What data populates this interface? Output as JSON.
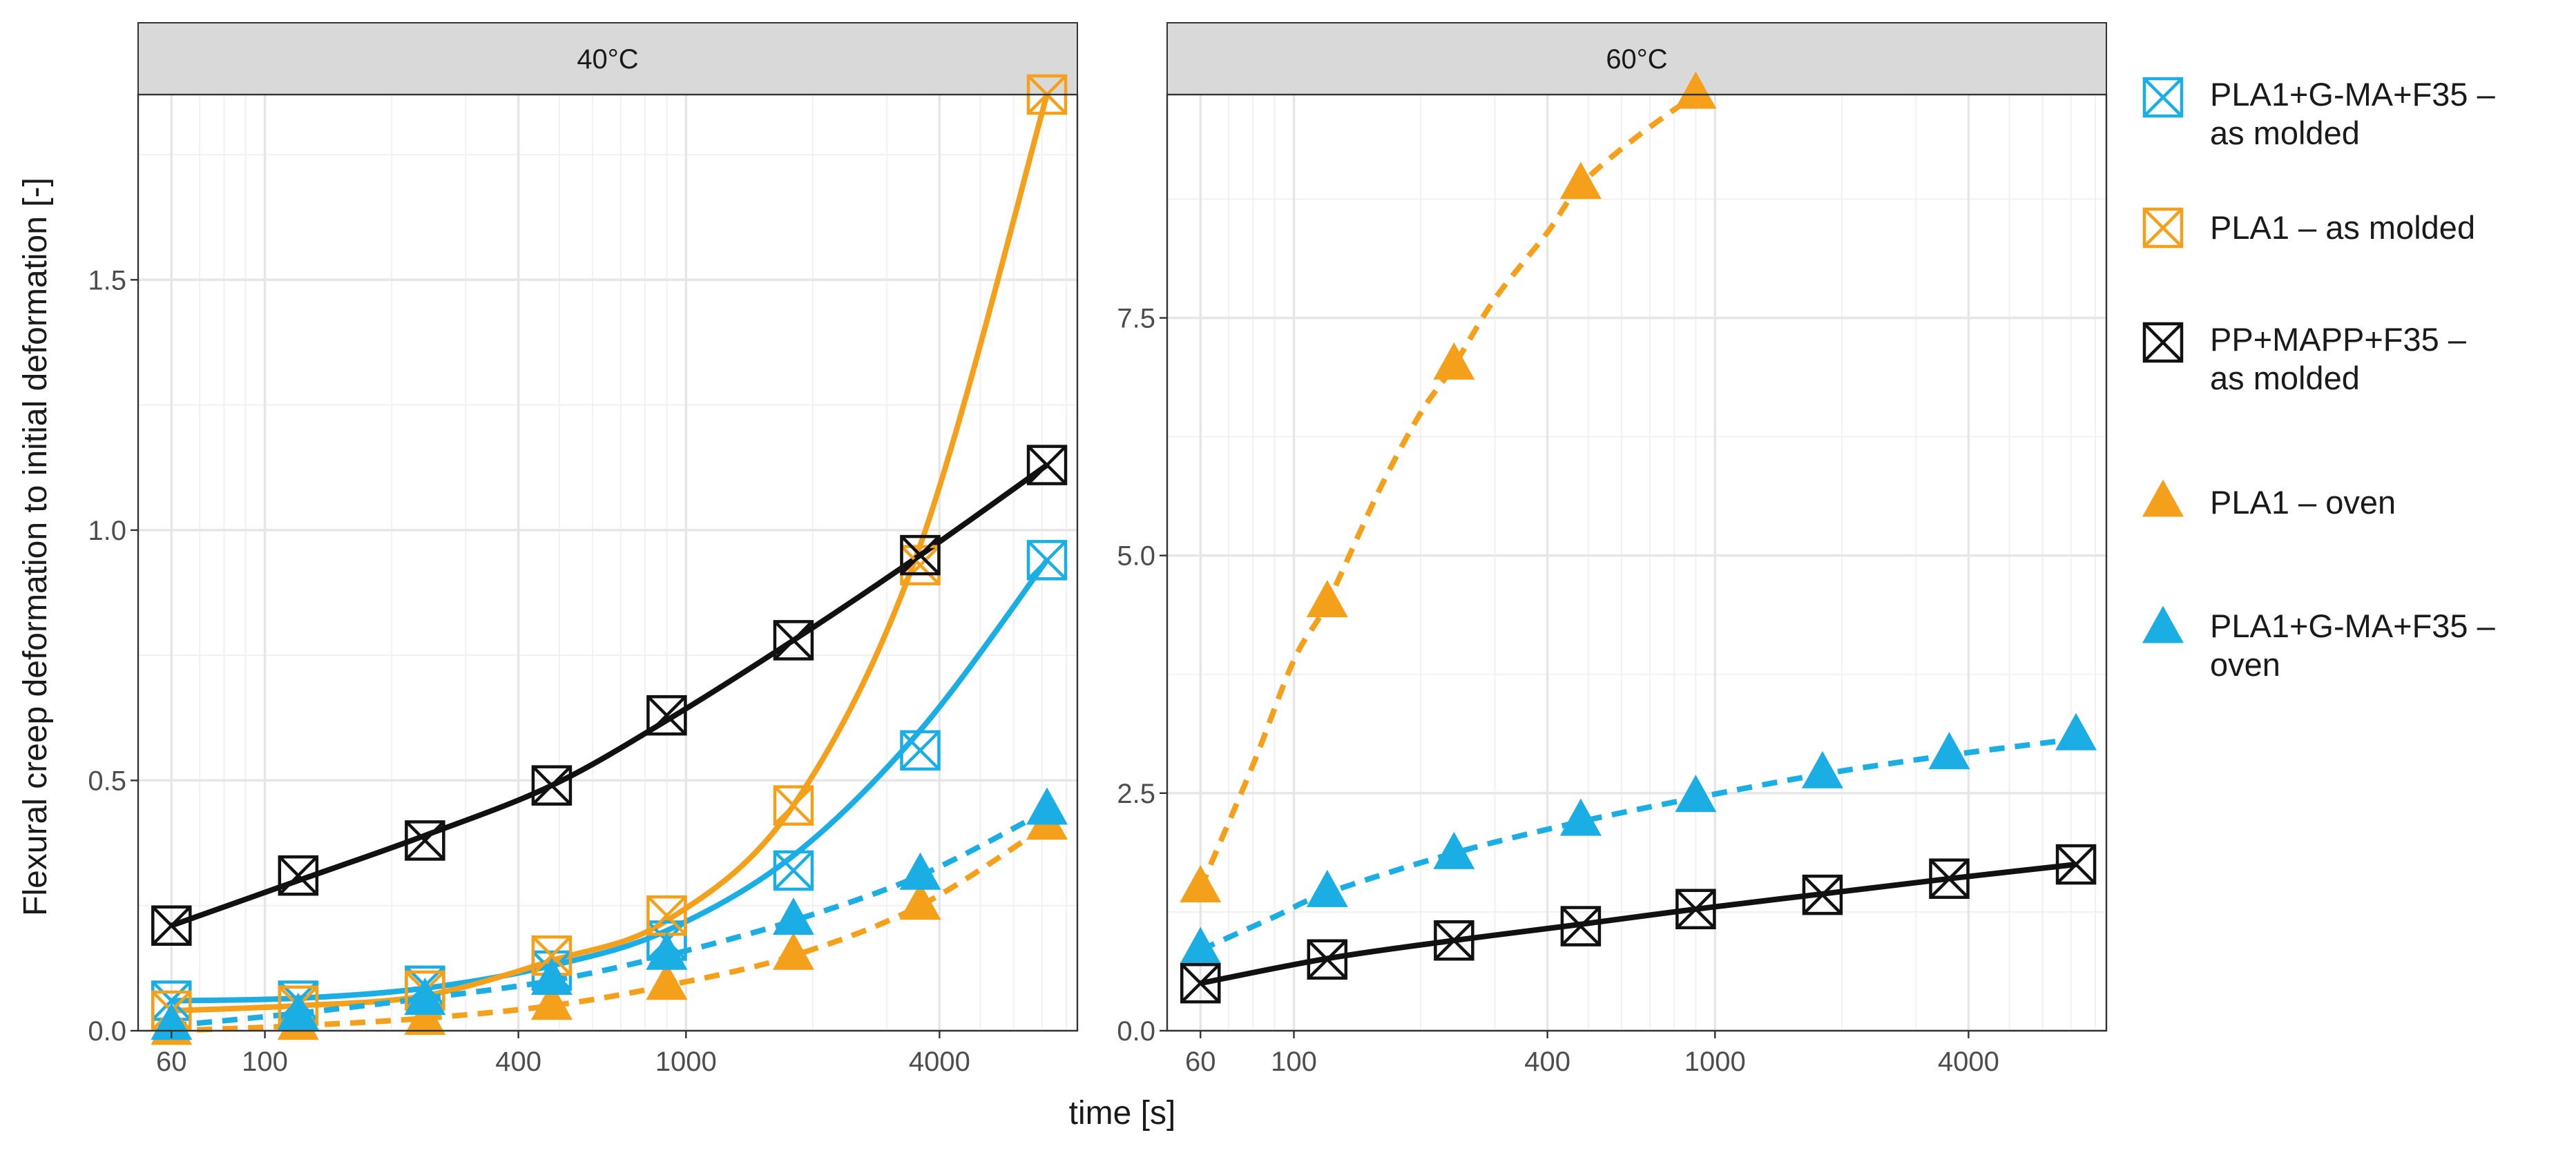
{
  "chart_data": {
    "type": "line",
    "xlabel": "time [s]",
    "ylabel": "Flexural creep deformation to initial deformation [-]",
    "x_scale": "log",
    "x_ticks": [
      60,
      100,
      400,
      1000,
      4000
    ],
    "x_tick_labels": [
      "60",
      "100",
      "400",
      "1000",
      "4000"
    ],
    "x_minor_ticks": [
      70,
      80,
      90,
      200,
      300,
      500,
      600,
      700,
      800,
      900,
      2000,
      3000,
      5000,
      6000,
      7000,
      8000
    ],
    "xlim": [
      50,
      8500
    ],
    "colors": {
      "blue": "#1aaee4",
      "orange": "#f4a01b",
      "black": "#111111"
    },
    "legend": [
      {
        "label_lines": [
          "PLA1+G-MA+F35 –",
          "as molded"
        ],
        "marker": "boxed-x",
        "color": "#1aaee4"
      },
      {
        "label_lines": [
          "PLA1 – as molded"
        ],
        "marker": "boxed-x",
        "color": "#f4a01b"
      },
      {
        "label_lines": [
          "PP+MAPP+F35 –",
          "as molded"
        ],
        "marker": "boxed-x",
        "color": "#111111"
      },
      {
        "label_lines": [
          "PLA1 – oven"
        ],
        "marker": "triangle",
        "color": "#f4a01b"
      },
      {
        "label_lines": [
          "PLA1+G-MA+F35 –",
          "oven"
        ],
        "marker": "triangle",
        "color": "#1aaee4"
      }
    ],
    "panels": [
      {
        "title": "40°C",
        "ylim": [
          0,
          1.87
        ],
        "y_ticks": [
          0,
          0.5,
          1.0,
          1.5
        ],
        "y_tick_labels": [
          "0.0",
          "0.5",
          "1.0",
          "1.5"
        ],
        "y_minor_ticks": [
          0.25,
          0.75,
          1.25,
          1.75
        ],
        "series": [
          {
            "name": "PLA1+G-MA+F35 – as molded",
            "marker": "boxed-x",
            "color": "#1aaee4",
            "line": "solid",
            "x": [
              60,
              120,
              240,
              480,
              900,
              1800,
              3600,
              7200
            ],
            "y": [
              0.06,
              0.06,
              0.09,
              0.12,
              0.18,
              0.32,
              0.56,
              0.94
            ],
            "fit_x": [
              60,
              120,
              240,
              480,
              900,
              1800,
              3600,
              7200
            ],
            "fit_y": [
              0.06,
              0.065,
              0.085,
              0.13,
              0.2,
              0.35,
              0.6,
              0.94
            ]
          },
          {
            "name": "PLA1 – as molded",
            "marker": "boxed-x",
            "color": "#f4a01b",
            "line": "solid",
            "x": [
              60,
              120,
              240,
              480,
              900,
              1800,
              3600,
              7200
            ],
            "y": [
              0.04,
              0.05,
              0.08,
              0.15,
              0.23,
              0.45,
              0.93,
              1.87
            ],
            "fit_x": [
              60,
              120,
              240,
              480,
              900,
              1800,
              3600,
              7200
            ],
            "fit_y": [
              0.04,
              0.05,
              0.07,
              0.14,
              0.22,
              0.45,
              0.97,
              1.87
            ]
          },
          {
            "name": "PP+MAPP+F35 – as molded",
            "marker": "boxed-x",
            "color": "#111111",
            "line": "solid",
            "x": [
              60,
              120,
              240,
              480,
              900,
              1800,
              3600,
              7200
            ],
            "y": [
              0.21,
              0.31,
              0.38,
              0.49,
              0.63,
              0.78,
              0.95,
              1.13
            ],
            "fit_x": [
              60,
              120,
              240,
              480,
              900,
              1800,
              3600,
              7200
            ],
            "fit_y": [
              0.21,
              0.3,
              0.39,
              0.49,
              0.62,
              0.78,
              0.95,
              1.13
            ]
          },
          {
            "name": "PLA1 – oven",
            "marker": "triangle",
            "color": "#f4a01b",
            "line": "dashed",
            "x": [
              60,
              120,
              240,
              480,
              900,
              1800,
              3600,
              7200
            ],
            "y": [
              0.0,
              0.01,
              0.02,
              0.05,
              0.09,
              0.15,
              0.25,
              0.41
            ],
            "fit_x": [
              60,
              120,
              240,
              480,
              900,
              1800,
              3600,
              7200
            ],
            "fit_y": [
              0.0,
              0.01,
              0.025,
              0.05,
              0.09,
              0.15,
              0.25,
              0.41
            ]
          },
          {
            "name": "PLA1+G-MA+F35 – oven",
            "marker": "triangle",
            "color": "#1aaee4",
            "line": "dashed",
            "x": [
              60,
              120,
              240,
              480,
              900,
              1800,
              3600,
              7200
            ],
            "y": [
              0.01,
              0.03,
              0.06,
              0.1,
              0.15,
              0.22,
              0.31,
              0.44
            ],
            "fit_x": [
              60,
              120,
              240,
              480,
              900,
              1800,
              3600,
              7200
            ],
            "fit_y": [
              0.01,
              0.035,
              0.065,
              0.1,
              0.15,
              0.22,
              0.31,
              0.44
            ]
          }
        ]
      },
      {
        "title": "60°C",
        "ylim": [
          0,
          9.85
        ],
        "y_ticks": [
          0,
          2.5,
          5.0,
          7.5
        ],
        "y_tick_labels": [
          "0.0",
          "2.5",
          "5.0",
          "7.5"
        ],
        "y_minor_ticks": [
          1.25,
          3.75,
          6.25,
          8.75
        ],
        "series": [
          {
            "name": "PLA1 – oven",
            "marker": "triangle",
            "color": "#f4a01b",
            "line": "dashed",
            "x": [
              60,
              120,
              240,
              480,
              900
            ],
            "y": [
              1.5,
              4.5,
              7.0,
              8.9,
              9.85
            ],
            "fit_x": [
              60,
              80,
              100,
              120,
              160,
              200,
              240,
              300,
              400,
              480,
              650,
              900
            ],
            "fit_y": [
              1.5,
              2.8,
              3.9,
              4.5,
              5.7,
              6.5,
              7.0,
              7.7,
              8.4,
              8.9,
              9.4,
              9.85
            ]
          },
          {
            "name": "PLA1+G-MA+F35 – oven",
            "marker": "triangle",
            "color": "#1aaee4",
            "line": "dashed",
            "x": [
              60,
              120,
              240,
              480,
              900,
              1800,
              3600,
              7200
            ],
            "y": [
              0.85,
              1.45,
              1.85,
              2.2,
              2.45,
              2.7,
              2.9,
              3.1
            ],
            "fit_x": [
              60,
              90,
              120,
              240,
              480,
              900,
              1800,
              3600,
              7200
            ],
            "fit_y": [
              0.85,
              1.2,
              1.45,
              1.87,
              2.2,
              2.45,
              2.7,
              2.9,
              3.07
            ]
          },
          {
            "name": "PP+MAPP+F35 – as molded",
            "marker": "boxed-x",
            "color": "#111111",
            "line": "solid",
            "x": [
              60,
              120,
              240,
              480,
              900,
              1800,
              3600,
              7200
            ],
            "y": [
              0.5,
              0.75,
              0.95,
              1.1,
              1.28,
              1.43,
              1.6,
              1.75
            ],
            "fit_x": [
              60,
              120,
              240,
              480,
              900,
              1800,
              3600,
              7200
            ],
            "fit_y": [
              0.5,
              0.76,
              0.95,
              1.12,
              1.28,
              1.44,
              1.6,
              1.75
            ]
          }
        ]
      }
    ]
  }
}
